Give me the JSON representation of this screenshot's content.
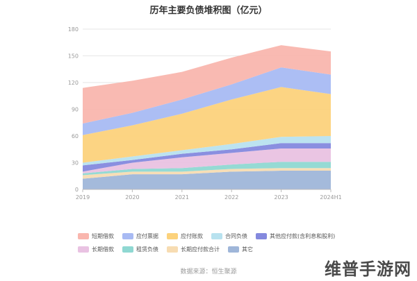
{
  "chart_data": {
    "type": "area",
    "stacked": true,
    "title": "历年主要负债堆积图（亿元）",
    "categories": [
      "2019",
      "2020",
      "2021",
      "2022",
      "2023",
      "2024H1"
    ],
    "ylim": [
      0,
      180
    ],
    "yticks": [
      0,
      30,
      60,
      90,
      120,
      150,
      180
    ],
    "grid": true,
    "legend_position": "bottom",
    "series": [
      {
        "name": "其它",
        "color": "#9fb6d9",
        "values": [
          12,
          17,
          17,
          20,
          21,
          21
        ]
      },
      {
        "name": "长期应付款合计",
        "color": "#f7dcb2",
        "values": [
          4,
          3,
          3,
          3,
          3,
          3
        ]
      },
      {
        "name": "租赁负债",
        "color": "#8fd8d2",
        "values": [
          2,
          3,
          4,
          5,
          7,
          7
        ]
      },
      {
        "name": "长期借款",
        "color": "#e9c2e2",
        "values": [
          2,
          7,
          12,
          13,
          15,
          15
        ]
      },
      {
        "name": "其他应付款(含利息和股利)",
        "color": "#8489de",
        "values": [
          7,
          3,
          4,
          4,
          6,
          6
        ]
      },
      {
        "name": "合同负债",
        "color": "#b8e2ef",
        "values": [
          3,
          4,
          4,
          6,
          7,
          8
        ]
      },
      {
        "name": "应付账款",
        "color": "#fcd27c",
        "values": [
          31,
          35,
          41,
          50,
          56,
          47
        ]
      },
      {
        "name": "应付票据",
        "color": "#a8baf3",
        "values": [
          13,
          14,
          16,
          17,
          22,
          22
        ]
      },
      {
        "name": "短期借款",
        "color": "#f9b6ae",
        "values": [
          40,
          36,
          31,
          30,
          25,
          26
        ]
      }
    ]
  },
  "legend_order": [
    [
      "短期借款",
      "应付票据",
      "应付账款",
      "合同负债",
      "其他应付款(含利息和股利)"
    ],
    [
      "长期借款",
      "租赁负债",
      "长期应付款合计",
      "其它"
    ]
  ],
  "source": "数据来源：恒生聚源",
  "watermark": "维普手游网"
}
